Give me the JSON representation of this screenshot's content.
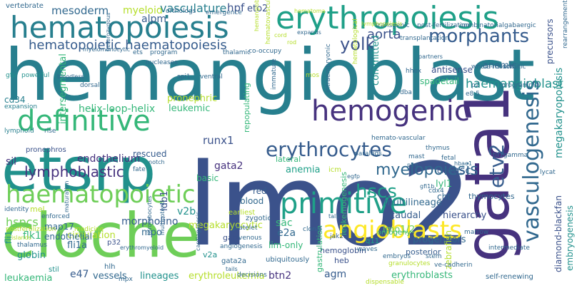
{
  "colors": {
    "dark_purple": "#46327e",
    "indigo": "#3b528b",
    "blue": "#365c8d",
    "steel": "#31688e",
    "teal": "#277f8e",
    "teal_green": "#21918c",
    "green_teal": "#1fa088",
    "green": "#35b779",
    "lime": "#6ece58",
    "yellow_green": "#b5de2b",
    "yellow": "#fde725",
    "purple": "#440154"
  },
  "words": {
    "hemangioblast": "hemangioblast",
    "lmo2": "lmo2",
    "gata1": "gata1",
    "cloche": "cloche",
    "etsrp": "etsrp",
    "hematopoiesis": "hematopoiesis",
    "erythropoiesis": "erythropoiesis",
    "hemogenic": "hemogenic",
    "definitive": "definitive",
    "primitive": "primitive",
    "vasculogenesis": "vasculogenesis",
    "angioblasts": "angioblasts",
    "erythrocytes": "erythrocytes",
    "haematopoietic": "haematopoietic",
    "lymphoblastic": "lymphoblastic",
    "morphants": "morphants",
    "hematopoietic_haematopoiesis": "hematopoietic haematopoiesis",
    "myelopoiesis": "myelopoiesis",
    "hscs": "hscs",
    "etv2": "etv2",
    "yolk": "yolk",
    "aorta": "aorta",
    "mesoderm": "mesoderm",
    "myeloid": "myeloid",
    "vasculature": "vasculature",
    "hpf": "hpf",
    "eto2": "eto2",
    "alpm": "alpm",
    "intersegmental": "intersegmental",
    "helix_loop_helix": "helix-loop-helix",
    "pronephric": "pronephric",
    "leukemic": "leukemic",
    "endothelium": "endothelium",
    "rescued": "rescued",
    "runx1": "runx1",
    "gata2": "gata2",
    "sil": "sil",
    "basic": "basic",
    "cd34": "cd34",
    "v2b": "v2b",
    "ldb1": "ldb1",
    "morpholino": "morpholino",
    "megakaryocytic": "megakaryocytic",
    "mpo": "mpo",
    "sac": "sac",
    "red": "red",
    "blood": "blood",
    "hspcs": "hspcs",
    "map17": "map17",
    "flk1": "flk1",
    "fli1": "fli1",
    "fli1a": "fli1a",
    "globin": "globin",
    "leukaemia": "leukaemia",
    "e47": "e47",
    "vessels": "vessels",
    "lineages": "lineages",
    "erythroleukemia": "erythroleukemia",
    "btn2": "btn2",
    "agm": "agm",
    "e2a": "e2a",
    "lim_only": "lim-only",
    "hemoglobin": "hemoglobin",
    "heb": "heb",
    "erythroblasts": "erythroblasts",
    "angiogenesis": "angiogenesis",
    "gastrulation": "gastrulation",
    "leukemogenesis": "leukemogenesis",
    "hsc": "hsc",
    "lyl1": "lyl1",
    "cmyb": "cmyb",
    "multilineage": "multilineage",
    "caudal": "caudal",
    "hierarchy": "hierarchy",
    "lmo1_2": "lmo1/2",
    "progenitors": "progenitors",
    "cht": "cht",
    "thymocytes": "thymocytes",
    "posterior": "posterior",
    "haemangioblast": "haemangioblast",
    "megakaryopoiesis": "megakaryopoiesis",
    "diamond_blackfan": "diamond-blackfan",
    "embryogenesis": "embryogenesis",
    "zebrafish": "zebrafish",
    "precursors": "precursors",
    "anemic": "anemic",
    "antisense": "antisense",
    "spadetail": "spadetail",
    "committed": "committed",
    "repopulating": "repopulating",
    "circulation": "circulation",
    "endothelial": "endothelial",
    "anemia": "anemia",
    "lateral": "lateral",
    "icm": "icm",
    "mel": "mel",
    "hhex": "hhex",
    "transplantation": "transplantation",
    "whole_mount": "whole-mount",
    "somitic": "somitic",
    "thymus": "thymus",
    "mast": "mast",
    "fetal": "fetal",
    "lycat": "lycat",
    "tif1gamma": "tif1gamma",
    "ontogeny": "ontogeny",
    "q11": "q11",
    "cdx4": "cdx4",
    "granulocytes": "granulocytes",
    "embryos": "embryos",
    "stem": "stem",
    "ve_cadherin": "ve-cadherin",
    "intermediate": "intermediate",
    "marrow": "marrow",
    "platelet": "platelet",
    "venous": "venous",
    "gata2a": "gata2a",
    "mpx": "mpx",
    "tails": "tails",
    "decisions": "decisions",
    "ubiquitously": "ubiquitously",
    "p32": "p32",
    "gata": "gata",
    "v2a": "v2a",
    "zygotic": "zygotic",
    "earliest": "earliest",
    "clonal": "clonal",
    "tal1": "tal1",
    "jak2a": "jak2a",
    "self_renewing": "self-renewing",
    "dispensable": "dispensable",
    "stil": "stil",
    "thalamus": "thalamus",
    "hlh": "hlh",
    "vertebrate": "vertebrate",
    "gfp": "gfp",
    "powerful": "powerful",
    "expansion": "expansion",
    "lymphoid": "lymphoid",
    "rise": "rise",
    "pronephros": "pronephros",
    "identity": "identity",
    "enforced": "enforced",
    "medicine": "medicine",
    "postfertilization": "postfertilization",
    "islands": "islands",
    "nucleases": "nucleases",
    "orthologs": "orthologs",
    "ets": "ets",
    "program": "program",
    "emergence": "emergence",
    "co_occupy": "co-occupy",
    "thalamic": "thalamic",
    "dorsal": "dorsal",
    "ventral": "ventral",
    "expands": "expands",
    "lymphopoiesis": "lymphopoiesis",
    "transgenic": "transgenic",
    "post_fertilization": "post-fertilization",
    "combinatorial": "combinatorial",
    "gabaergic": "gabaergic",
    "rearrangements": "rearrangements",
    "p2": "p2",
    "programme": "programme",
    "e8_5": "e8.5",
    "dba": "dba",
    "hemato_vascular": "hemato-vascular",
    "hematovascular": "hematovascular",
    "intraembryonic": "intraembryonic",
    "mos": "mos",
    "spi1": "spi1",
    "immature": "immature",
    "hematological": "hematological",
    "paralogs": "paralogs",
    "hbae1": "hbae1",
    "plte": "plte",
    "gfi1b": "gfi1b",
    "egfp": "egfp",
    "waves": "waves",
    "notch": "notch",
    "fate": "fate",
    "maturation": "maturation",
    "multipotent": "multipotent",
    "cardiogenesis": "cardiogenesis",
    "thrombocytes": "thrombocytes",
    "heterozygous": "heterozygous",
    "erythromyeloid": "erythromyeloid",
    "myelomonocytic": "myelomonocytic",
    "bloodless": "bloodless",
    "rod": "rod",
    "hematoma": "hematoma",
    "partners": "partners",
    "hemangioblasts": "hemangioblasts",
    "cord": "cord"
  }
}
